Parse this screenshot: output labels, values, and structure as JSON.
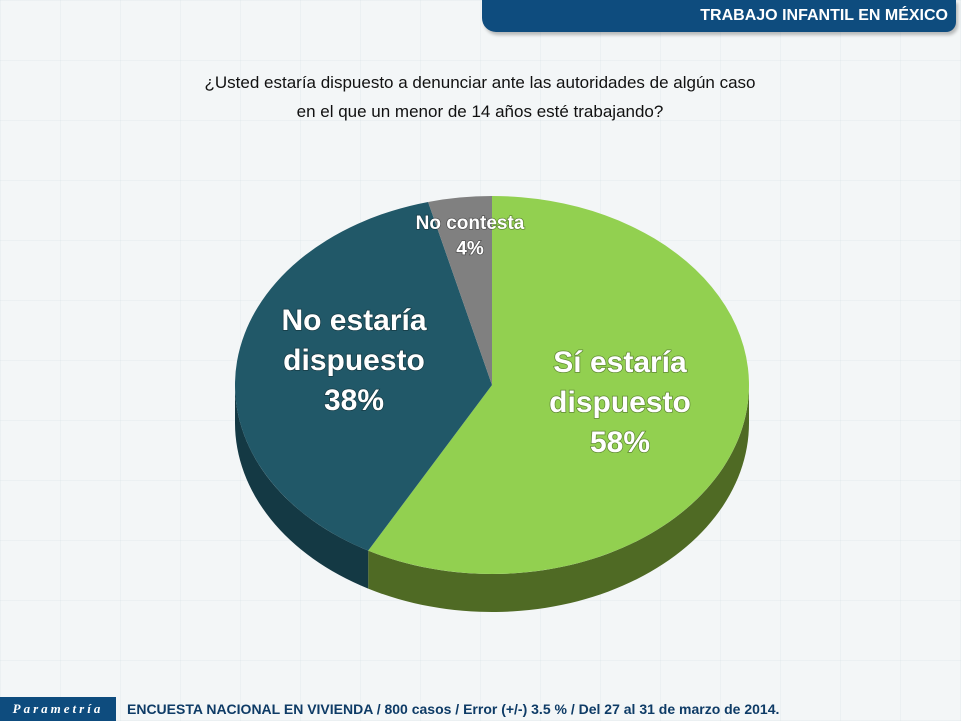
{
  "header": {
    "title": "TRABAJO INFANTIL EN MÉXICO"
  },
  "question": {
    "line1": "¿Usted estaría dispuesto a denunciar ante las autoridades de algún caso",
    "line2": "en el que un menor de 14 años esté trabajando?"
  },
  "chart_data": {
    "type": "pie",
    "title": "¿Usted estaría dispuesto a denunciar ante las autoridades de algún caso en el que un menor de 14 años esté trabajando?",
    "slices": [
      {
        "label_lines": [
          "Sí estaría",
          "dispuesto"
        ],
        "value": 58,
        "value_label": "58%",
        "color": "#92d050",
        "side_color": "#4f6a24"
      },
      {
        "label_lines": [
          "No estaría",
          "dispuesto"
        ],
        "value": 38,
        "value_label": "38%",
        "color": "#215868",
        "side_color": "#143944"
      },
      {
        "label_lines": [
          "No contesta"
        ],
        "value": 4,
        "value_label": "4%",
        "color": "#808080",
        "side_color": "#555555"
      }
    ]
  },
  "footer": {
    "logo": "Parametría",
    "text": "ENCUESTA NACIONAL EN VIVIENDA / 800 casos / Error (+/-) 3.5 % / Del 27 al 31 de marzo de 2014."
  }
}
